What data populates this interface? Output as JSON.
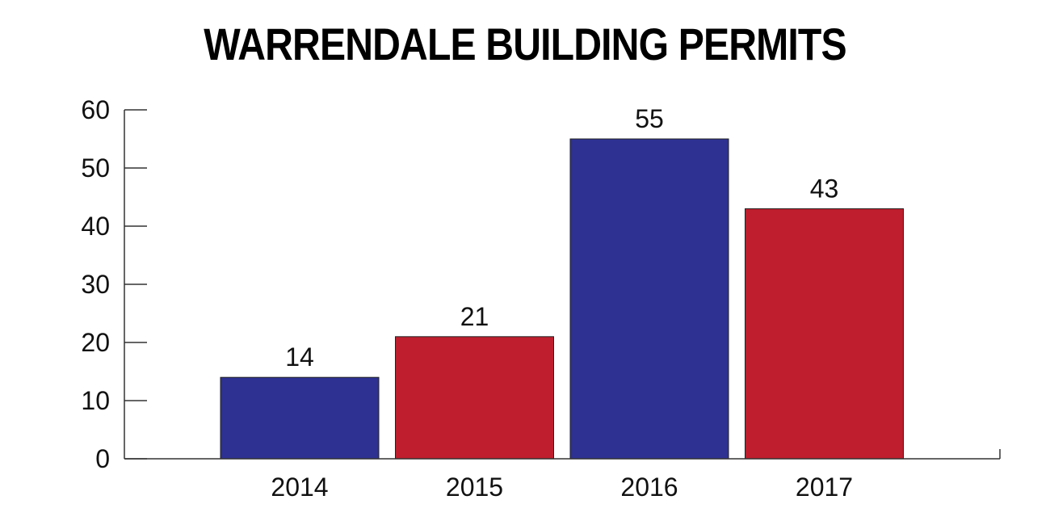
{
  "chart_data": {
    "type": "bar",
    "title": "WARRENDALE BUILDING PERMITS",
    "categories": [
      "2014",
      "2015",
      "2016",
      "2017"
    ],
    "values": [
      14,
      21,
      55,
      43
    ],
    "data_labels": [
      "14",
      "21",
      "55",
      "43"
    ],
    "bar_colors": [
      "#2e3192",
      "#be1e2d",
      "#2e3192",
      "#be1e2d"
    ],
    "ylim": [
      0,
      60
    ],
    "y_ticks": [
      0,
      10,
      20,
      30,
      40,
      50,
      60
    ],
    "xlabel": "",
    "ylabel": "",
    "grid": false,
    "legend": "none"
  }
}
